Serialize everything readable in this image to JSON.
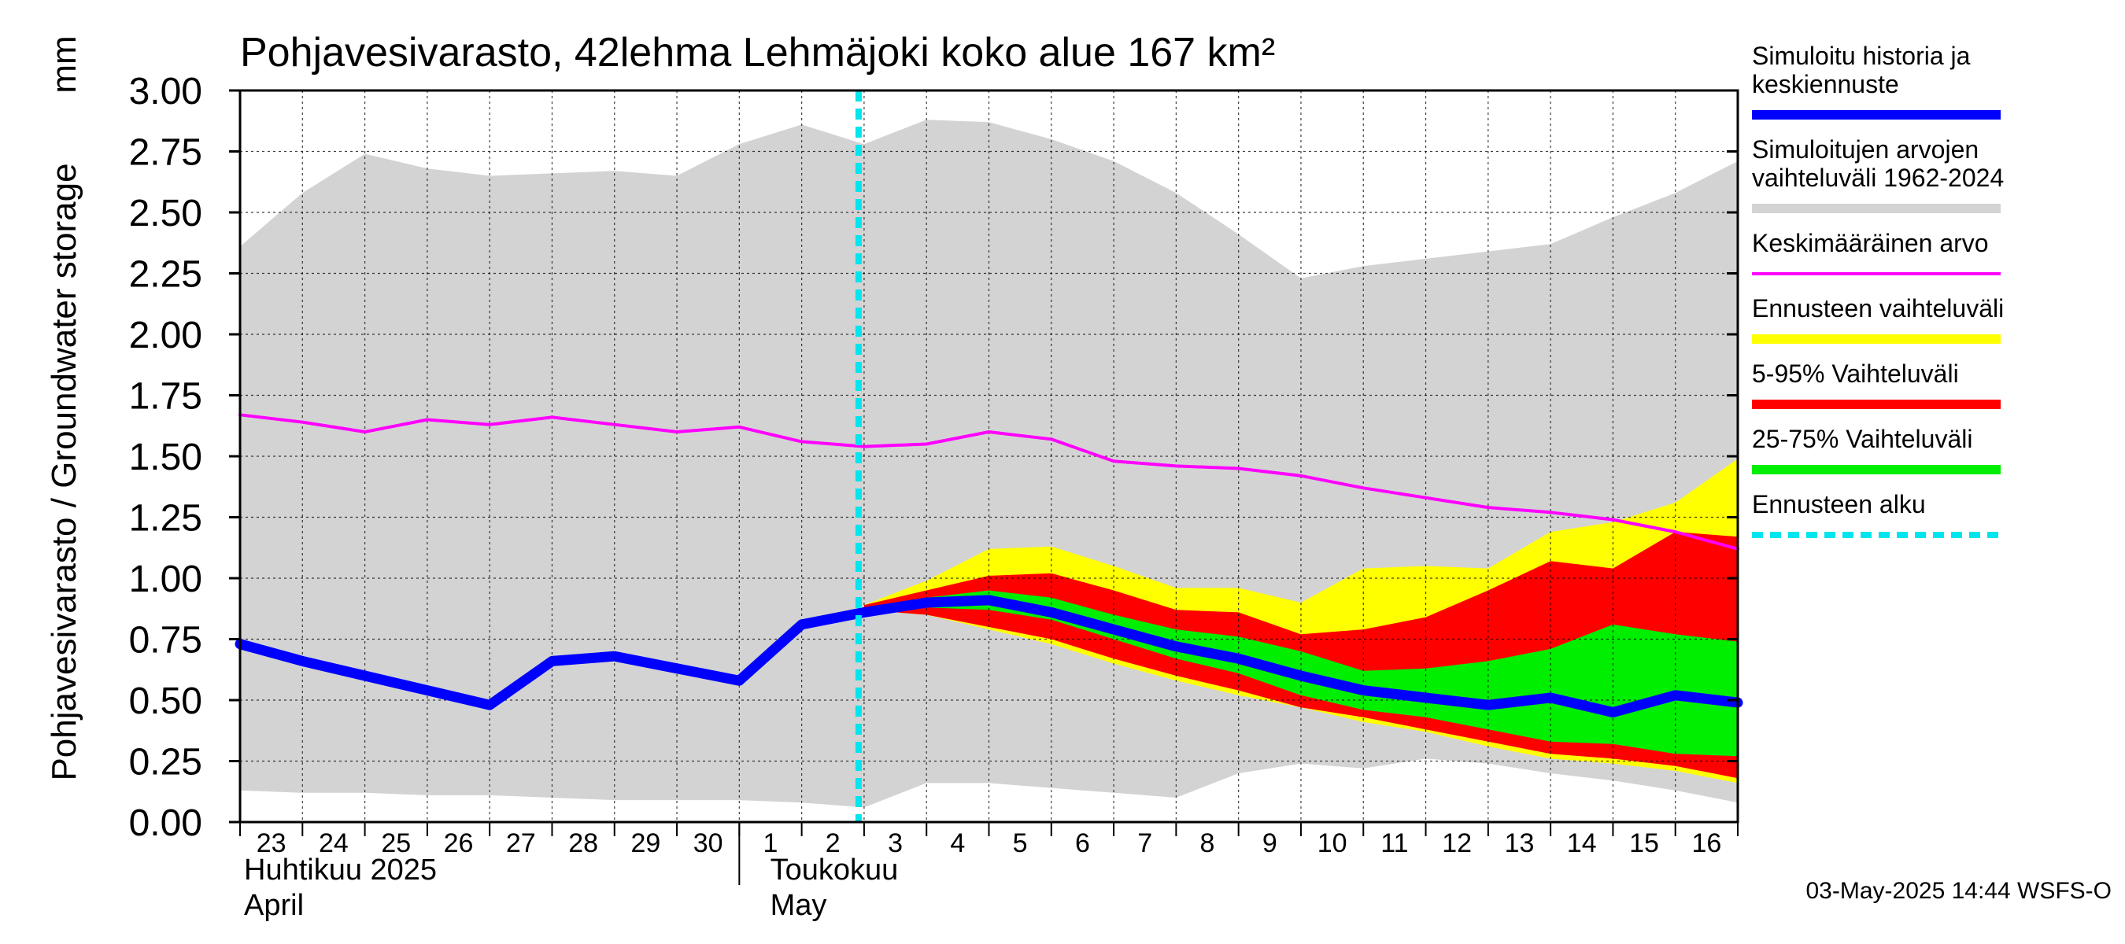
{
  "chart_data": {
    "type": "area",
    "title": "Pohjavesivarasto, 42lehma Lehmäjoki koko alue 167 km²",
    "ylabel": "Pohjavesivarasto / Groundwater storage",
    "yunit": "mm",
    "ylim": [
      0,
      3
    ],
    "yticks": [
      "0.00",
      "0.25",
      "0.50",
      "0.75",
      "1.00",
      "1.25",
      "1.50",
      "1.75",
      "2.00",
      "2.25",
      "2.50",
      "2.75",
      "3.00"
    ],
    "day_labels": [
      "23",
      "24",
      "25",
      "26",
      "27",
      "28",
      "29",
      "30",
      "1",
      "2",
      "3",
      "4",
      "5",
      "6",
      "7",
      "8",
      "9",
      "10",
      "11",
      "12",
      "13",
      "14",
      "15",
      "16"
    ],
    "month_labels": [
      {
        "line1": "Huhtikuu  2025",
        "line2": "April"
      },
      {
        "line1": "Toukokuu",
        "line2": "May"
      }
    ],
    "x_dates": [
      "2025-04-23",
      "2025-04-24",
      "2025-04-25",
      "2025-04-26",
      "2025-04-27",
      "2025-04-28",
      "2025-04-29",
      "2025-04-30",
      "2025-05-01",
      "2025-05-02",
      "2025-05-03",
      "2025-05-04",
      "2025-05-05",
      "2025-05-06",
      "2025-05-07",
      "2025-05-08",
      "2025-05-09",
      "2025-05-10",
      "2025-05-11",
      "2025-05-12",
      "2025-05-13",
      "2025-05-14",
      "2025-05-15",
      "2025-05-16",
      "2025-05-17"
    ],
    "forecast_start": "2025-05-03",
    "series": [
      {
        "name": "Simuloitujen arvojen vaihteluväli 1962-2024",
        "kind": "band",
        "color": "#d3d3d3",
        "upper": [
          2.36,
          2.58,
          2.74,
          2.68,
          2.65,
          2.66,
          2.67,
          2.65,
          2.78,
          2.86,
          2.78,
          2.88,
          2.87,
          2.8,
          2.71,
          2.58,
          2.41,
          2.23,
          2.28,
          2.31,
          2.34,
          2.37,
          2.48,
          2.58,
          2.71
        ],
        "lower": [
          0.13,
          0.12,
          0.12,
          0.11,
          0.11,
          0.1,
          0.09,
          0.09,
          0.09,
          0.08,
          0.06,
          0.16,
          0.16,
          0.14,
          0.12,
          0.1,
          0.2,
          0.24,
          0.22,
          0.26,
          0.24,
          0.2,
          0.17,
          0.13,
          0.08
        ]
      },
      {
        "name": "Ennusteen vaihteluväli",
        "kind": "band",
        "color": "#ffff00",
        "start": "2025-05-03",
        "upper": [
          0.89,
          0.99,
          1.12,
          1.13,
          1.05,
          0.96,
          0.96,
          0.9,
          1.04,
          1.05,
          1.04,
          1.19,
          1.23,
          1.31,
          1.49
        ],
        "lower": [
          0.87,
          0.85,
          0.79,
          0.73,
          0.65,
          0.58,
          0.52,
          0.47,
          0.41,
          0.37,
          0.31,
          0.26,
          0.24,
          0.21,
          0.16
        ]
      },
      {
        "name": "5-95% Vaihteluväli",
        "kind": "band",
        "color": "#ff0000",
        "start": "2025-05-03",
        "upper": [
          0.89,
          0.95,
          1.01,
          1.02,
          0.95,
          0.87,
          0.86,
          0.77,
          0.79,
          0.84,
          0.95,
          1.07,
          1.04,
          1.19,
          1.17
        ],
        "lower": [
          0.87,
          0.85,
          0.8,
          0.75,
          0.67,
          0.6,
          0.54,
          0.47,
          0.43,
          0.38,
          0.33,
          0.28,
          0.26,
          0.23,
          0.18
        ]
      },
      {
        "name": "25-75% Vaihteluväli",
        "kind": "band",
        "color": "#00ee00",
        "start": "2025-05-03",
        "upper": [
          0.88,
          0.92,
          0.95,
          0.92,
          0.85,
          0.79,
          0.76,
          0.7,
          0.62,
          0.63,
          0.66,
          0.71,
          0.81,
          0.77,
          0.74
        ],
        "lower": [
          0.87,
          0.88,
          0.87,
          0.83,
          0.75,
          0.67,
          0.61,
          0.52,
          0.46,
          0.43,
          0.38,
          0.33,
          0.32,
          0.28,
          0.27
        ]
      },
      {
        "name": "Keskimääräinen arvo",
        "kind": "line",
        "color": "#ff00ff",
        "values": [
          1.67,
          1.64,
          1.6,
          1.65,
          1.63,
          1.66,
          1.63,
          1.6,
          1.62,
          1.56,
          1.54,
          1.55,
          1.6,
          1.57,
          1.48,
          1.46,
          1.45,
          1.42,
          1.37,
          1.33,
          1.29,
          1.27,
          1.24,
          1.19,
          1.12
        ]
      },
      {
        "name": "Simuloitu historia ja keskiennuste",
        "kind": "line",
        "color": "#0000ff",
        "values": [
          0.73,
          0.66,
          0.6,
          0.54,
          0.48,
          0.66,
          0.68,
          0.63,
          0.58,
          0.81,
          0.86,
          0.9,
          0.91,
          0.86,
          0.79,
          0.72,
          0.67,
          0.6,
          0.54,
          0.51,
          0.48,
          0.51,
          0.45,
          0.52,
          0.49
        ]
      },
      {
        "name": "Ennusteen alku",
        "kind": "vline",
        "color": "#00e5ee"
      }
    ],
    "legend": [
      {
        "lines": [
          "Simuloitu historia ja",
          "keskiennuste"
        ],
        "color": "#0000ff",
        "style": "thick"
      },
      {
        "lines": [
          "Simuloitujen arvojen",
          "vaihteluväli 1962-2024"
        ],
        "color": "#d3d3d3",
        "style": "thick"
      },
      {
        "lines": [
          "Keskimääräinen arvo"
        ],
        "color": "#ff00ff",
        "style": "thin"
      },
      {
        "lines": [
          "Ennusteen vaihteluväli"
        ],
        "color": "#ffff00",
        "style": "thick"
      },
      {
        "lines": [
          "5-95% Vaihteluväli"
        ],
        "color": "#ff0000",
        "style": "thick"
      },
      {
        "lines": [
          "25-75% Vaihteluväli"
        ],
        "color": "#00ee00",
        "style": "thick"
      },
      {
        "lines": [
          "Ennusteen alku"
        ],
        "color": "#00e5ee",
        "style": "dashed"
      }
    ],
    "legend_placement": "right",
    "grid": true,
    "timestamp": "03-May-2025 14:44 WSFS-O"
  }
}
